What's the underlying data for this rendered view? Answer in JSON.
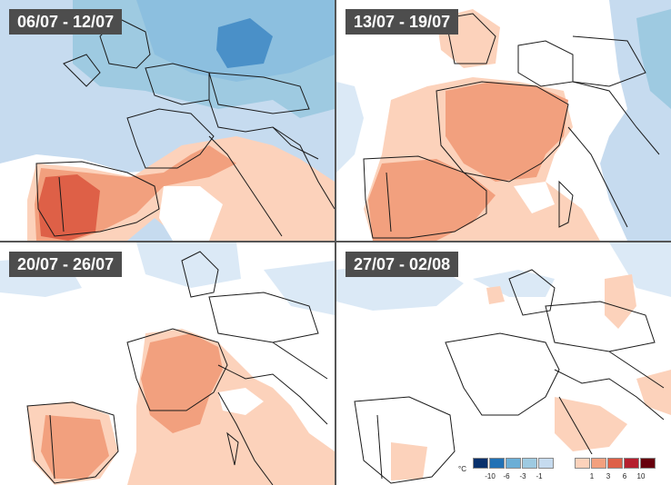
{
  "panels": [
    {
      "date_label": "06/07 - 12/07"
    },
    {
      "date_label": "13/07 - 19/07"
    },
    {
      "date_label": "20/07 - 26/07"
    },
    {
      "date_label": "27/07 - 02/08"
    }
  ],
  "legend": {
    "unit": "°C",
    "cold_ticks": [
      "-10",
      "-6",
      "-3",
      "-1"
    ],
    "warm_ticks": [
      "1",
      "3",
      "6",
      "10"
    ],
    "cold_colors": [
      "#08306b",
      "#2171b5",
      "#6baed6",
      "#9ecae1",
      "#c6dbef"
    ],
    "warm_colors": [
      "#fcd2bb",
      "#f2a07e",
      "#de6047",
      "#b51f2e",
      "#67000d"
    ]
  },
  "colors": {
    "border_lines": "#1a1a1a",
    "label_bg": "#4d4d4d",
    "label_text": "#ffffff"
  }
}
